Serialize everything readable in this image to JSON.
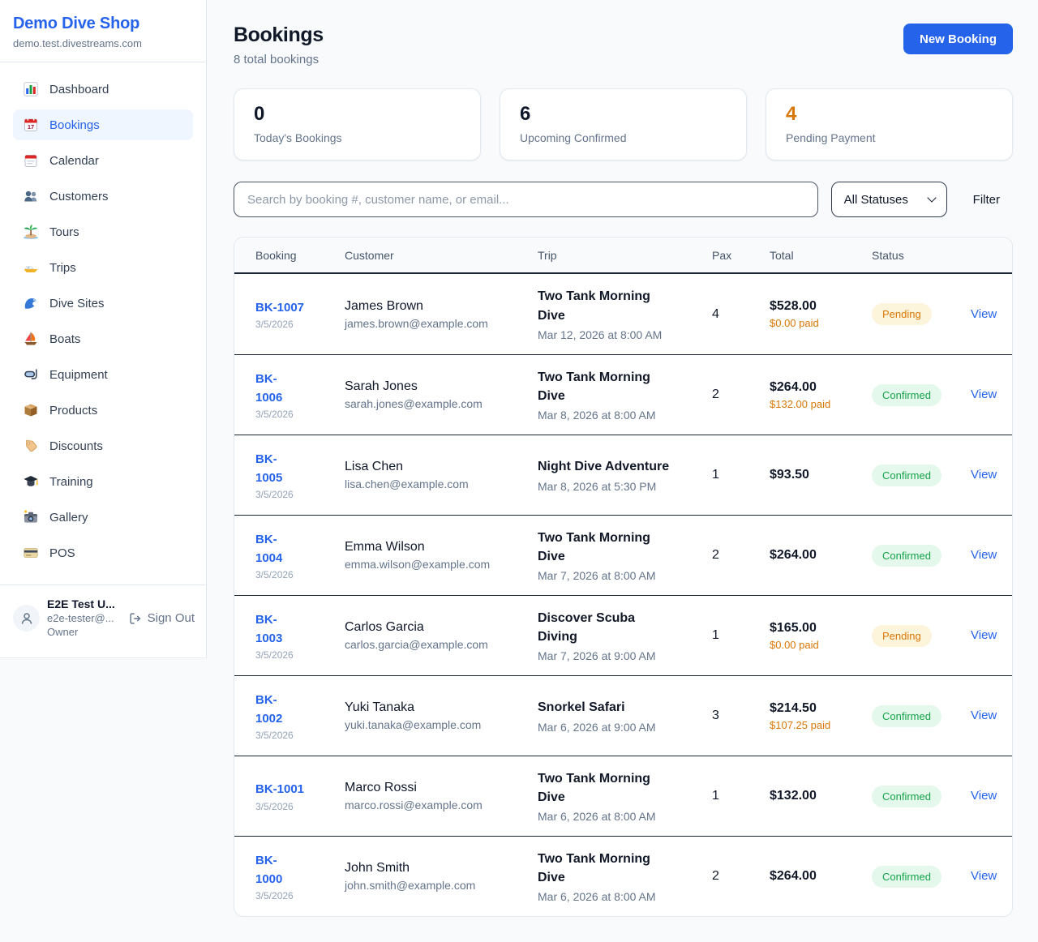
{
  "colors": {
    "accent": "#2563eb",
    "pending_text": "#d97706",
    "pending_bg": "#fdf4dc",
    "confirmed_text": "#16a34a",
    "confirmed_bg": "#e4f8ec"
  },
  "sidebar": {
    "title": "Demo Dive Shop",
    "subtitle": "demo.test.divestreams.com",
    "items": [
      {
        "label": "Dashboard",
        "icon": "bar-chart",
        "active": false
      },
      {
        "label": "Bookings",
        "icon": "calendar-date",
        "active": true
      },
      {
        "label": "Calendar",
        "icon": "calendar",
        "active": false
      },
      {
        "label": "Customers",
        "icon": "users",
        "active": false
      },
      {
        "label": "Tours",
        "icon": "island",
        "active": false
      },
      {
        "label": "Trips",
        "icon": "speedboat",
        "active": false
      },
      {
        "label": "Dive Sites",
        "icon": "wave",
        "active": false
      },
      {
        "label": "Boats",
        "icon": "sailboat",
        "active": false
      },
      {
        "label": "Equipment",
        "icon": "diving-mask",
        "active": false
      },
      {
        "label": "Products",
        "icon": "package",
        "active": false
      },
      {
        "label": "Discounts",
        "icon": "tag",
        "active": false
      },
      {
        "label": "Training",
        "icon": "graduation-cap",
        "active": false
      },
      {
        "label": "Gallery",
        "icon": "camera",
        "active": false
      },
      {
        "label": "POS",
        "icon": "credit-card",
        "active": false
      }
    ],
    "user": {
      "name": "E2E Test U...",
      "email": "e2e-tester@...",
      "role": "Owner",
      "signout_label": "Sign Out"
    }
  },
  "header": {
    "title": "Bookings",
    "subtitle": "8 total bookings",
    "new_booking_label": "New Booking"
  },
  "stats": [
    {
      "value": "0",
      "label": "Today's Bookings",
      "color": "#0f172a"
    },
    {
      "value": "6",
      "label": "Upcoming Confirmed",
      "color": "#0f172a"
    },
    {
      "value": "4",
      "label": "Pending Payment",
      "color": "#d97706"
    }
  ],
  "filters": {
    "search_placeholder": "Search by booking #, customer name, or email...",
    "status_selected": "All Statuses",
    "filter_label": "Filter"
  },
  "table": {
    "columns": [
      "Booking",
      "Customer",
      "Trip",
      "Pax",
      "Total",
      "Status"
    ],
    "view_label": "View",
    "rows": [
      {
        "id": "BK-1007",
        "id_wrapped": false,
        "date": "3/5/2026",
        "customer": "James Brown",
        "email": "james.brown@example.com",
        "trip": "Two Tank Morning Dive",
        "trip_time": "Mar 12, 2026 at 8:00 AM",
        "pax": "4",
        "total": "$528.00",
        "paid": "$0.00 paid",
        "status": "Pending"
      },
      {
        "id": "BK-1006",
        "id_wrapped": true,
        "date": "3/5/2026",
        "customer": "Sarah Jones",
        "email": "sarah.jones@example.com",
        "trip": "Two Tank Morning Dive",
        "trip_time": "Mar 8, 2026 at 8:00 AM",
        "pax": "2",
        "total": "$264.00",
        "paid": "$132.00 paid",
        "status": "Confirmed"
      },
      {
        "id": "BK-1005",
        "id_wrapped": true,
        "date": "3/5/2026",
        "customer": "Lisa Chen",
        "email": "lisa.chen@example.com",
        "trip": "Night Dive Adventure",
        "trip_time": "Mar 8, 2026 at 5:30 PM",
        "pax": "1",
        "total": "$93.50",
        "paid": "",
        "status": "Confirmed"
      },
      {
        "id": "BK-1004",
        "id_wrapped": true,
        "date": "3/5/2026",
        "customer": "Emma Wilson",
        "email": "emma.wilson@example.com",
        "trip": "Two Tank Morning Dive",
        "trip_time": "Mar 7, 2026 at 8:00 AM",
        "pax": "2",
        "total": "$264.00",
        "paid": "",
        "status": "Confirmed"
      },
      {
        "id": "BK-1003",
        "id_wrapped": true,
        "date": "3/5/2026",
        "customer": "Carlos Garcia",
        "email": "carlos.garcia@example.com",
        "trip": "Discover Scuba Diving",
        "trip_time": "Mar 7, 2026 at 9:00 AM",
        "pax": "1",
        "total": "$165.00",
        "paid": "$0.00 paid",
        "status": "Pending"
      },
      {
        "id": "BK-1002",
        "id_wrapped": true,
        "date": "3/5/2026",
        "customer": "Yuki Tanaka",
        "email": "yuki.tanaka@example.com",
        "trip": "Snorkel Safari",
        "trip_time": "Mar 6, 2026 at 9:00 AM",
        "pax": "3",
        "total": "$214.50",
        "paid": "$107.25 paid",
        "status": "Confirmed"
      },
      {
        "id": "BK-1001",
        "id_wrapped": false,
        "date": "3/5/2026",
        "customer": "Marco Rossi",
        "email": "marco.rossi@example.com",
        "trip": "Two Tank Morning Dive",
        "trip_time": "Mar 6, 2026 at 8:00 AM",
        "pax": "1",
        "total": "$132.00",
        "paid": "",
        "status": "Confirmed"
      },
      {
        "id": "BK-1000",
        "id_wrapped": true,
        "date": "3/5/2026",
        "customer": "John Smith",
        "email": "john.smith@example.com",
        "trip": "Two Tank Morning Dive",
        "trip_time": "Mar 6, 2026 at 8:00 AM",
        "pax": "2",
        "total": "$264.00",
        "paid": "",
        "status": "Confirmed"
      }
    ]
  }
}
